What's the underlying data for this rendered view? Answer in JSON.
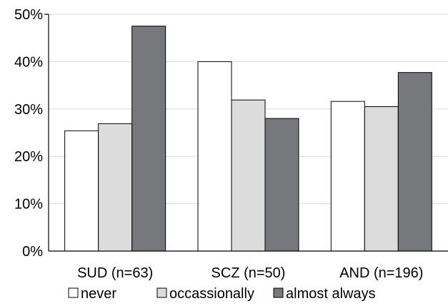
{
  "chart_data": {
    "type": "bar",
    "categories": [
      "SUD (n=63)",
      "SCZ (n=50)",
      "AND (n=196)"
    ],
    "series": [
      {
        "name": "never",
        "values": [
          25.4,
          40.0,
          31.6
        ],
        "color": "#ffffff"
      },
      {
        "name": "occassionally",
        "values": [
          26.9,
          31.9,
          30.5
        ],
        "color": "#dcdcdc"
      },
      {
        "name": "almost always",
        "values": [
          47.5,
          28.0,
          37.7
        ],
        "color": "#77787b"
      }
    ],
    "yticks": [
      "0%",
      "10%",
      "20%",
      "30%",
      "40%",
      "50%"
    ],
    "ylim": [
      0,
      50
    ],
    "grid": true,
    "legend_position": "bottom"
  }
}
